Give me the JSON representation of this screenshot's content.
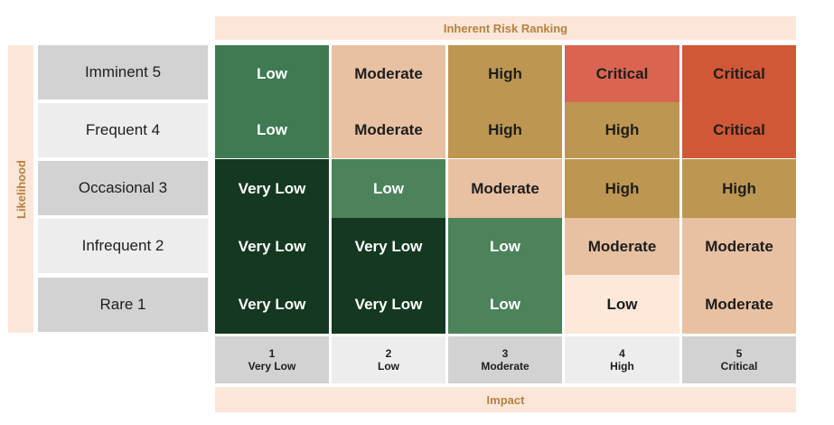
{
  "title": "Inherent Risk Ranking",
  "y_axis_label": "Likelihood",
  "x_axis_label": "Impact",
  "rows": [
    {
      "label": "Imminent 5",
      "cells": [
        "Low",
        "Moderate",
        "High",
        "Critical",
        "Critical"
      ]
    },
    {
      "label": "Frequent 4",
      "cells": [
        "Low",
        "Moderate",
        "High",
        "High",
        "Critical"
      ]
    },
    {
      "label": "Occasional 3",
      "cells": [
        "Very Low",
        "Low",
        "Moderate",
        "High",
        "High"
      ]
    },
    {
      "label": "Infrequent 2",
      "cells": [
        "Very Low",
        "Very Low",
        "Low",
        "Moderate",
        "Moderate"
      ]
    },
    {
      "label": "Rare 1",
      "cells": [
        "Very Low",
        "Very Low",
        "Low",
        "Low",
        "Moderate"
      ]
    }
  ],
  "columns": [
    {
      "number": "1",
      "label": "Very Low"
    },
    {
      "number": "2",
      "label": "Low"
    },
    {
      "number": "3",
      "label": "Moderate"
    },
    {
      "number": "4",
      "label": "High"
    },
    {
      "number": "5",
      "label": "Critical"
    }
  ],
  "colors": {
    "very_low": "#143820",
    "low": "#4c835b",
    "moderate": "#e8c1a2",
    "high": "#bd9651",
    "critical": "#d96550",
    "header_band": "#fce6d9",
    "header_text": "#b5823f"
  }
}
